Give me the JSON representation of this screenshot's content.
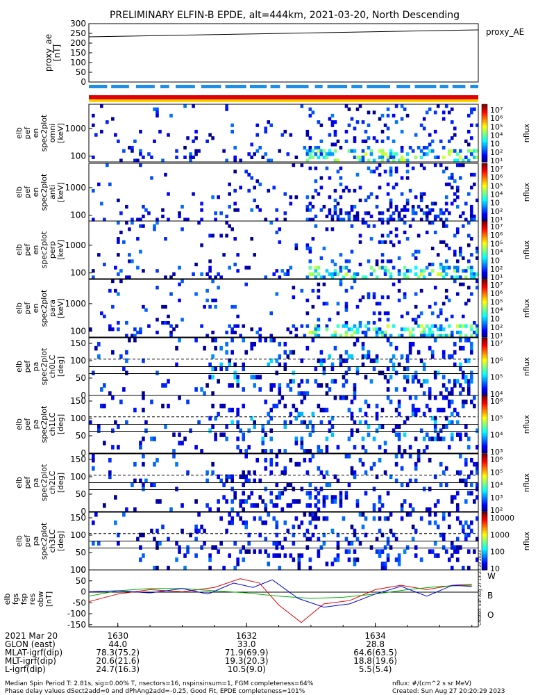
{
  "chart_data": {
    "type": "heatmap",
    "title": "PRELIMINARY ELFIN-B EPDE, alt=444km, 2021-03-20, North Descending",
    "time_ticks": [
      "1630",
      "1632",
      "1634"
    ],
    "time_tick_minutes": [
      30,
      32,
      34
    ],
    "time_range_minutes": [
      29.55,
      35.6
    ],
    "proxy_ae": {
      "ylabel": [
        "proxy_ae",
        "[nT]"
      ],
      "legend": "proxy_AE",
      "yticks": [
        "300",
        "250",
        "200",
        "150",
        "100",
        "50",
        "0"
      ],
      "ylim": [
        0,
        300
      ],
      "values_start_end": [
        232,
        268
      ]
    },
    "status_bars": [
      {
        "name": "dashed",
        "color": "#1f8fe6"
      },
      {
        "name": "red",
        "color": "#e00000"
      },
      {
        "name": "yellow",
        "color": "#ffd000"
      }
    ],
    "spectrograms": [
      {
        "ylabel": [
          "elb",
          "pef",
          "en",
          "spec2plot",
          "omni",
          "[keV]"
        ],
        "yticks": [
          "1000",
          "100"
        ],
        "cbar_label": "nflux",
        "cbar_ticks": [
          "10⁷",
          "10⁶",
          "10⁵",
          "10⁴",
          "10⁳",
          "10²",
          "10¹"
        ]
      },
      {
        "ylabel": [
          "elb",
          "pef",
          "en",
          "spec2plot",
          "anti",
          "[keV]"
        ],
        "yticks": [
          "1000",
          "100"
        ],
        "cbar_label": "nflux",
        "cbar_ticks": [
          "10⁷",
          "10⁶",
          "10⁵",
          "10⁴",
          "10⁳",
          "10²",
          "10¹"
        ]
      },
      {
        "ylabel": [
          "elb",
          "pef",
          "en",
          "spec2plot",
          "perp",
          "[keV]"
        ],
        "yticks": [
          "1000",
          "100"
        ],
        "cbar_label": "nflux",
        "cbar_ticks": [
          "10⁷",
          "10⁶",
          "10⁵",
          "10⁴",
          "10⁳",
          "10²",
          "10¹"
        ]
      },
      {
        "ylabel": [
          "elb",
          "pef",
          "en",
          "spec2plot",
          "para",
          "[keV]"
        ],
        "yticks": [
          "1000",
          "100"
        ],
        "cbar_label": "nflux",
        "cbar_ticks": [
          "10⁷",
          "10⁶",
          "10⁵",
          "10⁴",
          "10⁳",
          "10²",
          "10¹"
        ]
      },
      {
        "ylabel": [
          "elb",
          "pef",
          "pa",
          "spec2plot",
          "ch0LC",
          "[deg]"
        ],
        "yticks": [
          "150",
          "100",
          "50",
          "0"
        ],
        "cbar_label": "nflux",
        "cbar_ticks": [
          "10⁷",
          "10⁶",
          "10⁵",
          "10⁴"
        ]
      },
      {
        "ylabel": [
          "elb",
          "pef",
          "pa",
          "spec2plot",
          "ch1LC",
          "[deg]"
        ],
        "yticks": [
          "150",
          "100",
          "50",
          "0"
        ],
        "cbar_label": "nflux",
        "cbar_ticks": [
          "10⁶",
          "10⁵",
          "10⁴",
          "10³"
        ]
      },
      {
        "ylabel": [
          "elb",
          "pef",
          "pa",
          "spec2plot",
          "ch2LC",
          "[deg]"
        ],
        "yticks": [
          "150",
          "100",
          "50",
          "0"
        ],
        "cbar_label": "nflux",
        "cbar_ticks": [
          "10⁶",
          "10⁵",
          "10⁴",
          "10³",
          "10²"
        ]
      },
      {
        "ylabel": [
          "elb",
          "pef",
          "pa",
          "spec2plot",
          "ch3LC",
          "[deg]"
        ],
        "yticks": [
          "150",
          "100",
          "50",
          "0"
        ],
        "cbar_label": "nflux",
        "cbar_ticks": [
          "10000",
          "1000",
          "100",
          "10"
        ]
      }
    ],
    "fgs": {
      "ylabel": [
        "elb",
        "fgs",
        "fsp",
        "res",
        "obw",
        "[nT]"
      ],
      "yticks": [
        "100",
        "50",
        "0",
        "-50",
        "-100",
        "-150"
      ],
      "ylim": [
        -160,
        100
      ],
      "legend": [
        "W",
        "B",
        "O"
      ],
      "side_label": "Created: Sun Aug 27 13:20:29 2023",
      "series_w": [
        [
          29.55,
          -45
        ],
        [
          30.0,
          -10
        ],
        [
          30.5,
          10
        ],
        [
          31.0,
          0
        ],
        [
          31.5,
          20
        ],
        [
          31.9,
          60
        ],
        [
          32.2,
          40
        ],
        [
          32.5,
          -60
        ],
        [
          32.85,
          -140
        ],
        [
          33.2,
          -55
        ],
        [
          33.6,
          -40
        ],
        [
          34.0,
          10
        ],
        [
          34.4,
          30
        ],
        [
          34.8,
          10
        ],
        [
          35.2,
          30
        ],
        [
          35.5,
          35
        ]
      ],
      "series_b": [
        [
          29.55,
          -20
        ],
        [
          30.0,
          5
        ],
        [
          30.5,
          15
        ],
        [
          31.0,
          15
        ],
        [
          31.5,
          5
        ],
        [
          32.0,
          -5
        ],
        [
          32.5,
          -20
        ],
        [
          33.0,
          -30
        ],
        [
          33.5,
          -25
        ],
        [
          34.0,
          -10
        ],
        [
          34.5,
          10
        ],
        [
          35.0,
          25
        ],
        [
          35.5,
          30
        ]
      ],
      "series_o": [
        [
          29.55,
          0
        ],
        [
          30.0,
          5
        ],
        [
          30.5,
          -5
        ],
        [
          31.0,
          15
        ],
        [
          31.4,
          -10
        ],
        [
          31.8,
          40
        ],
        [
          32.1,
          20
        ],
        [
          32.4,
          55
        ],
        [
          32.8,
          -30
        ],
        [
          33.2,
          -70
        ],
        [
          33.6,
          -55
        ],
        [
          34.0,
          -10
        ],
        [
          34.4,
          25
        ],
        [
          34.8,
          -20
        ],
        [
          35.2,
          30
        ],
        [
          35.5,
          25
        ]
      ]
    },
    "ephemeris": {
      "rows": [
        {
          "label": "2021 Mar 20",
          "values": [
            "1630",
            "1632",
            "1634"
          ]
        },
        {
          "label": "GLON (east)",
          "values": [
            "44.0",
            "33.0",
            "28.8"
          ]
        },
        {
          "label": "MLAT-igrf(dip)",
          "values": [
            "78.3(75.2)",
            "71.9(69.9)",
            "64.6(63.5)"
          ]
        },
        {
          "label": "MLT-igrf(dip)",
          "values": [
            "20.6(21.6)",
            "19.3(20.3)",
            "18.8(19.6)"
          ]
        },
        {
          "label": "L-igrf(dip)",
          "values": [
            "24.7(16.3)",
            "10.5(9.0)",
            "5.5(5.4)"
          ]
        }
      ]
    },
    "footer": {
      "left1": "Median Spin Period T: 2.81s, sig=0.00% T, nsectors=16, nspinsinsum=1, FGM completeness=64%",
      "left2": "Phase delay values dSect2add=0 and dPhAng2add=-0.25, Good Fit, EPDE completeness=101%",
      "right1": "nflux: #/(cm^2 s sr MeV)",
      "right2": "Created: Sun Aug 27 20:20:29 2023"
    }
  }
}
